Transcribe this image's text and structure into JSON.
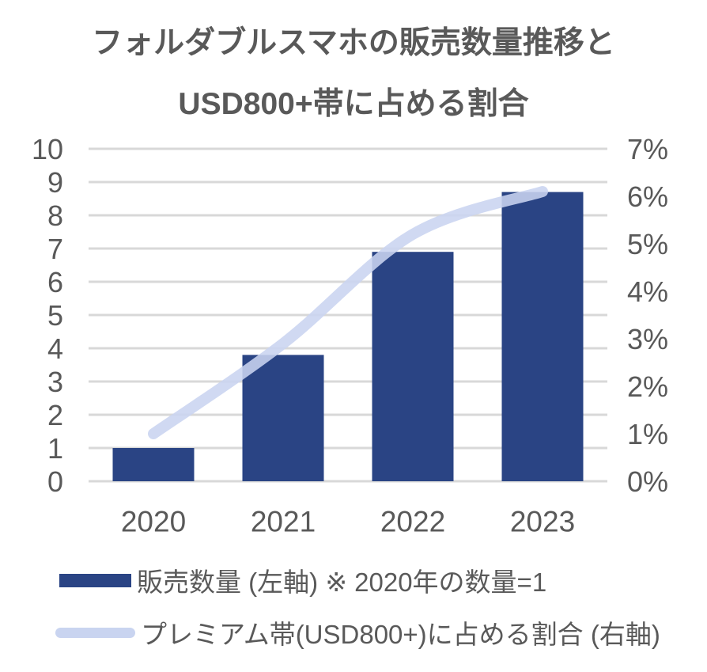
{
  "title": {
    "line1": "フォルダブルスマホの販売数量推移と",
    "line2": "USD800+帯に占める割合"
  },
  "legend": {
    "sales_label": "販売数量 (左軸) ※ 2020年の数量=1",
    "share_label": "プレミアム帯(USD800+)に占める割合 (右軸)"
  },
  "colors": {
    "bar": "#2A4484",
    "line": "#C9D4F0",
    "text": "#595959",
    "gridline": "#D8D8D8",
    "background": "#FFFFFF"
  },
  "chart_data": {
    "type": "bar",
    "subtype": "combo-bar-line",
    "title": "フォルダブルスマホの販売数量推移と USD800+帯に占める割合",
    "categories": [
      "2020",
      "2021",
      "2022",
      "2023"
    ],
    "series": [
      {
        "name": "販売数量 (左軸) ※ 2020年の数量=1",
        "type": "bar",
        "axis": "left",
        "values": [
          1.0,
          3.8,
          6.9,
          8.7
        ],
        "color": "#2A4484"
      },
      {
        "name": "プレミアム帯(USD800+)に占める割合 (右軸)",
        "type": "line",
        "axis": "right",
        "smooth": true,
        "values_percent": [
          1.0,
          2.9,
          5.2,
          6.1
        ],
        "color": "#C9D4F0"
      }
    ],
    "left_axis": {
      "min": 0,
      "max": 10,
      "step": 1,
      "ticks": [
        "0",
        "1",
        "2",
        "3",
        "4",
        "5",
        "6",
        "7",
        "8",
        "9",
        "10"
      ]
    },
    "right_axis": {
      "min": 0,
      "max": 7,
      "step": 1,
      "ticks": [
        "0%",
        "1%",
        "2%",
        "3%",
        "4%",
        "5%",
        "6%",
        "7%"
      ]
    },
    "grid": true,
    "legend_position": "bottom"
  }
}
